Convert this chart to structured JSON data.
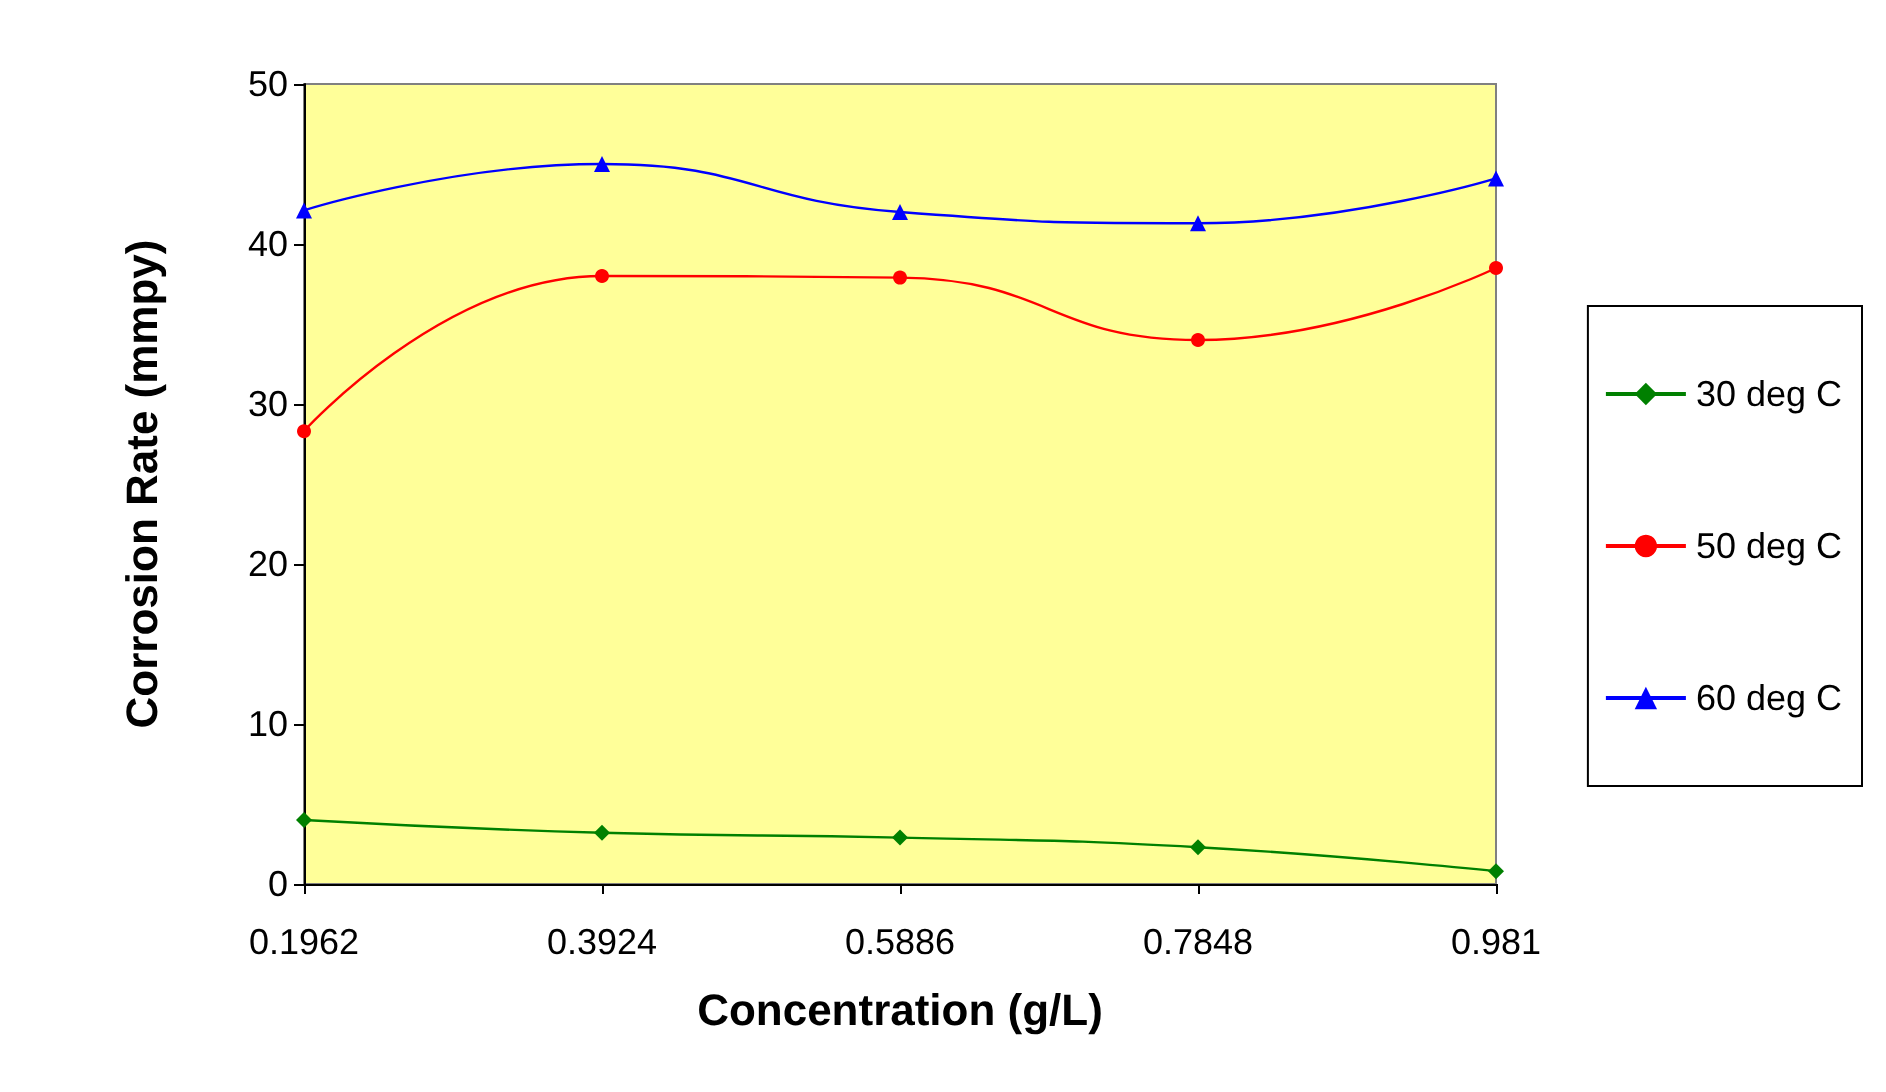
{
  "chart_data": {
    "type": "line",
    "xlabel": "Concentration (g/L)",
    "ylabel": "Corrosion Rate (mmpy)",
    "categories": [
      "0.1962",
      "0.3924",
      "0.5886",
      "0.7848",
      "0.981"
    ],
    "series": [
      {
        "name": "30 deg C",
        "color": "#008000",
        "marker": "diamond",
        "values": [
          4.0,
          3.2,
          2.9,
          2.3,
          0.8
        ]
      },
      {
        "name": "50 deg C",
        "color": "#ff0000",
        "marker": "circle",
        "values": [
          28.3,
          38.0,
          37.9,
          34.0,
          38.5
        ]
      },
      {
        "name": "60 deg C",
        "color": "#0000ff",
        "marker": "triangle",
        "values": [
          42.1,
          45.0,
          42.0,
          41.3,
          44.1
        ]
      }
    ],
    "ylim": [
      0,
      50
    ],
    "yticks": [
      0,
      10,
      20,
      30,
      40,
      50
    ],
    "grid": false,
    "legend": "right",
    "line_style": "solid"
  }
}
